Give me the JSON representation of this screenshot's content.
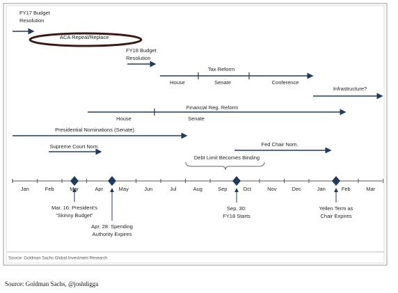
{
  "timeline": {
    "months": [
      "Jan",
      "Feb",
      "Mar",
      "Apr",
      "May",
      "Jun",
      "Jul",
      "Aug",
      "Sep",
      "Oct",
      "Nov",
      "Dec",
      "Jan",
      "Feb",
      "Mar"
    ],
    "fy17_budget": [
      "FY17 Budget",
      "Resolution"
    ],
    "aca": "ACA Repeal/Replace",
    "fy18_budget": [
      "FY18 Budget",
      "Resolution"
    ],
    "tax_reform": {
      "label": "Tax Reform",
      "phases": [
        "House",
        "Senate",
        "Conference"
      ]
    },
    "infrastructure": "Infrastructure?",
    "financial_reg": {
      "label": "Financial Reg. Reform",
      "phases": [
        "House",
        "Senate"
      ]
    },
    "nominations": "Presidential Nominations (Senate)",
    "supreme_court": "Supreme Court Nom.",
    "fed_chair": "Fed Chair Nom.",
    "debt_limit": "Debt Limit Becomes Binding",
    "milestones": [
      [
        "Mar. 16: President's",
        "“Skinny Budget”"
      ],
      [
        "Apr. 28: Spending",
        "Authority Expires"
      ],
      [
        "Sep. 30:",
        "FY18 Starts"
      ],
      [
        "Yellen Term as",
        "Chair Expires"
      ]
    ]
  },
  "source": "Source: Goldman Sachs Global Investment Research",
  "footer": "Source: Goldman Sachs, @joshdigga"
}
